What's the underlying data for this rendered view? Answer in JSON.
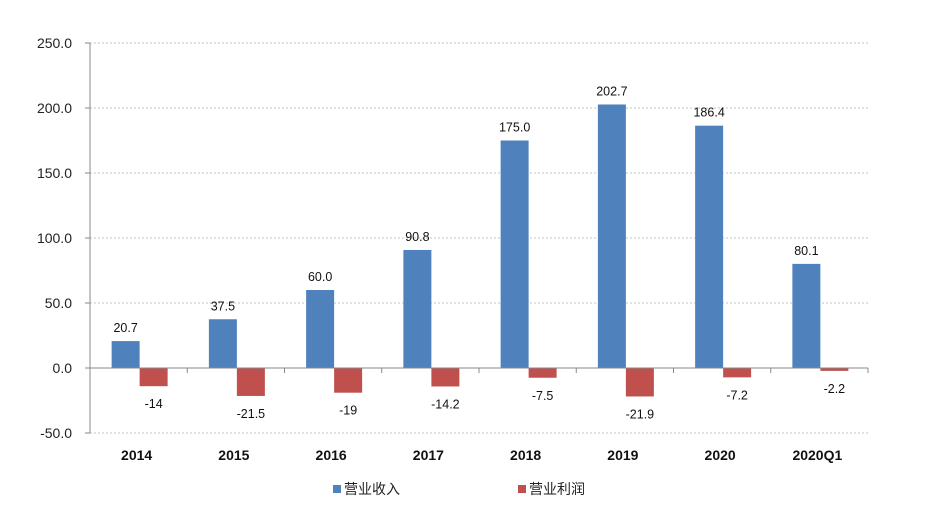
{
  "chart_data": {
    "type": "bar",
    "categories": [
      "2014",
      "2015",
      "2016",
      "2017",
      "2018",
      "2019",
      "2020",
      "2020Q1"
    ],
    "series": [
      {
        "name": "营业收入",
        "values": [
          20.7,
          37.5,
          60.0,
          90.8,
          175.0,
          202.7,
          186.4,
          80.1
        ],
        "labels": [
          "20.7",
          "37.5",
          "60.0",
          "90.8",
          "175.0",
          "202.7",
          "186.4",
          "80.1"
        ],
        "color": "#4f81bd"
      },
      {
        "name": "营业利润",
        "values": [
          -14,
          -21.5,
          -19,
          -14.2,
          -7.5,
          -21.9,
          -7.2,
          -2.2
        ],
        "labels": [
          "-14",
          "-21.5",
          "-19",
          "-14.2",
          "-7.5",
          "-21.9",
          "-7.2",
          "-2.2"
        ],
        "color": "#c0504d"
      }
    ],
    "ylim": [
      -50,
      250
    ],
    "yticks": [
      -50,
      0,
      50,
      100,
      150,
      200,
      250
    ],
    "ytick_labels": [
      "-50.0",
      "0.0",
      "50.0",
      "100.0",
      "150.0",
      "200.0",
      "250.0"
    ],
    "grid": true,
    "legend": "bottom",
    "title": "",
    "xlabel": "",
    "ylabel": ""
  }
}
